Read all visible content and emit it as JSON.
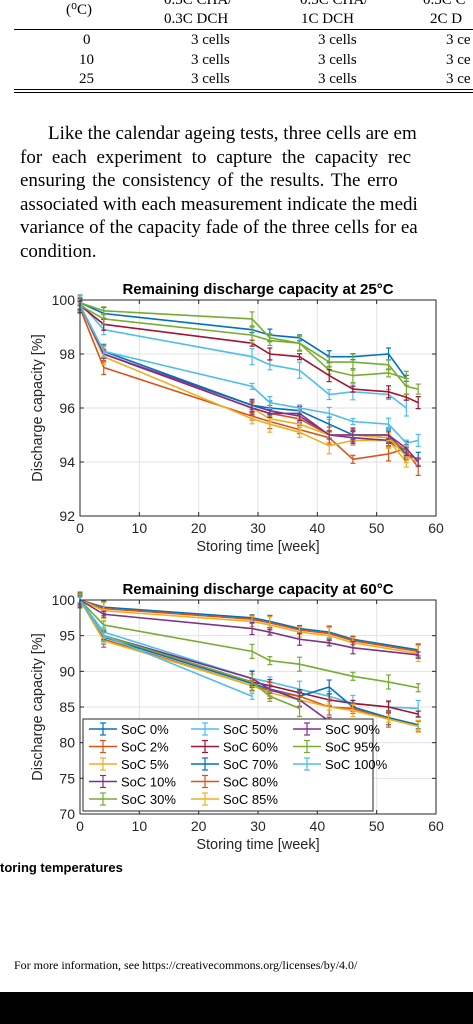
{
  "table": {
    "header_col1": "(⁰C)",
    "header_top": [
      "0.3C CHA/",
      "0.3C CHA/",
      "0.3C C"
    ],
    "header_bottom": [
      "0.3C DCH",
      "1C DCH",
      "2C D"
    ],
    "rows": [
      {
        "temp": "0",
        "c1": "3 cells",
        "c2": "3 cells",
        "c3": "3 ce"
      },
      {
        "temp": "10",
        "c1": "3 cells",
        "c2": "3 cells",
        "c3": "3 ce"
      },
      {
        "temp": "25",
        "c1": "3 cells",
        "c2": "3 cells",
        "c3": "3 ce"
      }
    ]
  },
  "paragraph": [
    "Like the calendar ageing tests, three cells are em",
    "for each experiment to capture the capacity rec",
    "ensuring the consistency of the results. The erro",
    "associated with each measurement indicate the medi",
    "variance of the capacity fade of the three cells for ea",
    "condition."
  ],
  "caption": "toring temperatures",
  "license": "For more information, see https://creativecommons.org/licenses/by/4.0/",
  "chart_data": [
    {
      "type": "line",
      "title": "Remaining discharge capacity at 25°C",
      "xlabel": "Storing time [week]",
      "ylabel": "Discharge capacity [%]",
      "xlim": [
        0,
        60
      ],
      "ylim": [
        92,
        100
      ],
      "xticks": [
        0,
        10,
        20,
        30,
        40,
        50,
        60
      ],
      "yticks": [
        92,
        94,
        96,
        98,
        100
      ],
      "grid": true,
      "x": [
        0,
        4,
        29,
        32,
        37,
        42,
        46,
        52,
        55,
        57
      ],
      "series": [
        {
          "name": "SoC 0%",
          "color": "#0072BD",
          "values": [
            99.9,
            99.5,
            98.9,
            98.7,
            98.6,
            97.9,
            97.9,
            98.0,
            97.1,
            null
          ]
        },
        {
          "name": "SoC 2%",
          "color": "#D95319",
          "values": [
            99.7,
            97.5,
            95.7,
            95.5,
            95.2,
            94.9,
            94.1,
            94.3,
            94.5,
            null
          ]
        },
        {
          "name": "SoC 5%",
          "color": "#EDB120",
          "values": [
            99.8,
            97.9,
            95.6,
            95.4,
            95.1,
            94.6,
            94.8,
            94.8,
            94.0,
            null
          ]
        },
        {
          "name": "SoC 10%",
          "color": "#7E2F8E",
          "values": [
            99.8,
            98.0,
            96.1,
            95.9,
            95.7,
            95.0,
            94.9,
            94.8,
            94.3,
            null
          ]
        },
        {
          "name": "SoC 30%",
          "color": "#77AC30",
          "values": [
            99.9,
            99.6,
            99.3,
            98.6,
            98.4,
            97.4,
            97.2,
            97.3,
            97.1,
            null
          ]
        },
        {
          "name": "SoC 50%",
          "color": "#4DBEEE",
          "values": [
            99.9,
            98.9,
            97.9,
            97.6,
            97.4,
            96.5,
            96.6,
            96.5,
            96.0,
            null
          ]
        },
        {
          "name": "SoC 60%",
          "color": "#A2142F",
          "values": [
            99.8,
            99.1,
            98.4,
            98.0,
            97.9,
            97.2,
            96.7,
            96.6,
            96.4,
            96.2
          ]
        },
        {
          "name": "SoC 70%",
          "color": "#0072BD",
          "values": [
            99.8,
            98.1,
            96.1,
            96.0,
            95.9,
            95.4,
            95.0,
            95.0,
            94.3,
            94.1
          ]
        },
        {
          "name": "SoC 80%",
          "color": "#D95319",
          "values": [
            99.8,
            98.0,
            96.0,
            95.8,
            95.6,
            95.0,
            95.0,
            94.9,
            94.4,
            93.8
          ]
        },
        {
          "name": "SoC 85%",
          "color": "#EDB120",
          "values": [
            99.8,
            98.0,
            96.0,
            95.6,
            95.4,
            95.0,
            95.0,
            94.9,
            94.2,
            94.0
          ]
        },
        {
          "name": "SoC 90%",
          "color": "#7E2F8E",
          "values": [
            99.8,
            98.0,
            96.0,
            95.8,
            95.8,
            95.0,
            95.0,
            95.0,
            94.5,
            94.0
          ]
        },
        {
          "name": "SoC 95%",
          "color": "#77AC30",
          "values": [
            99.8,
            99.3,
            98.7,
            98.5,
            98.4,
            97.7,
            97.7,
            97.6,
            96.8,
            96.7
          ]
        },
        {
          "name": "SoC 100%",
          "color": "#4DBEEE",
          "values": [
            99.8,
            98.1,
            96.8,
            96.2,
            96.0,
            95.8,
            95.5,
            95.4,
            94.7,
            94.8
          ]
        }
      ]
    },
    {
      "type": "line",
      "title": "Remaining discharge capacity at 60°C",
      "xlabel": "Storing time [week]",
      "ylabel": "Discharge capacity [%]",
      "xlim": [
        0,
        60
      ],
      "ylim": [
        70,
        100
      ],
      "xticks": [
        0,
        10,
        20,
        30,
        40,
        50,
        60
      ],
      "yticks": [
        70,
        75,
        80,
        85,
        90,
        95,
        100
      ],
      "grid": true,
      "legend": "bottom-left",
      "x": [
        0,
        4,
        29,
        32,
        37,
        42,
        46,
        52,
        57
      ],
      "series": [
        {
          "name": "SoC 0%",
          "color": "#0072BD",
          "values": [
            100,
            99.0,
            97.5,
            97.0,
            96.0,
            95.5,
            94.5,
            null,
            93.0
          ]
        },
        {
          "name": "SoC 2%",
          "color": "#D95319",
          "values": [
            100,
            98.8,
            97.3,
            96.8,
            95.8,
            95.3,
            94.3,
            null,
            92.8
          ]
        },
        {
          "name": "SoC 5%",
          "color": "#EDB120",
          "values": [
            100,
            98.5,
            97.0,
            96.5,
            95.5,
            95.0,
            94.0,
            null,
            92.5
          ]
        },
        {
          "name": "SoC 10%",
          "color": "#7E2F8E",
          "values": [
            100,
            98.0,
            96.0,
            95.5,
            94.5,
            94.0,
            93.3,
            null,
            92.3
          ]
        },
        {
          "name": "SoC 30%",
          "color": "#77AC30",
          "values": [
            100,
            96.5,
            92.8,
            91.5,
            91.0,
            null,
            89.3,
            88.5,
            87.7
          ]
        },
        {
          "name": "SoC 50%",
          "color": "#4DBEEE",
          "values": [
            100,
            95.5,
            89.0,
            88.5,
            87.5,
            86.5,
            85.5,
            85.0,
            84.8
          ]
        },
        {
          "name": "SoC 60%",
          "color": "#A2142F",
          "values": [
            100,
            95.0,
            88.5,
            88.0,
            87.0,
            86.0,
            85.5,
            85.0,
            84.0
          ]
        },
        {
          "name": "SoC 70%",
          "color": "#0072BD",
          "values": [
            100,
            94.8,
            88.3,
            87.5,
            86.5,
            87.8,
            85.0,
            83.5,
            82.5
          ]
        },
        {
          "name": "SoC 80%",
          "color": "#D95319",
          "values": [
            100,
            94.5,
            88.0,
            87.3,
            86.5,
            85.0,
            84.8,
            83.3,
            82.3
          ]
        },
        {
          "name": "SoC 85%",
          "color": "#EDB120",
          "values": [
            100,
            94.3,
            88.0,
            87.0,
            86.0,
            85.0,
            84.5,
            83.3,
            82.3
          ]
        },
        {
          "name": "SoC 90%",
          "color": "#7E2F8E",
          "values": [
            100,
            95.0,
            89.0,
            87.5,
            86.0,
            83.0,
            null,
            null,
            null
          ]
        },
        {
          "name": "SoC 95%",
          "color": "#77AC30",
          "values": [
            100,
            95.0,
            88.5,
            86.5,
            84.8,
            null,
            null,
            null,
            null
          ]
        },
        {
          "name": "SoC 100%",
          "color": "#4DBEEE",
          "values": [
            100,
            95.0,
            86.5,
            null,
            null,
            null,
            null,
            null,
            null
          ]
        }
      ]
    }
  ]
}
